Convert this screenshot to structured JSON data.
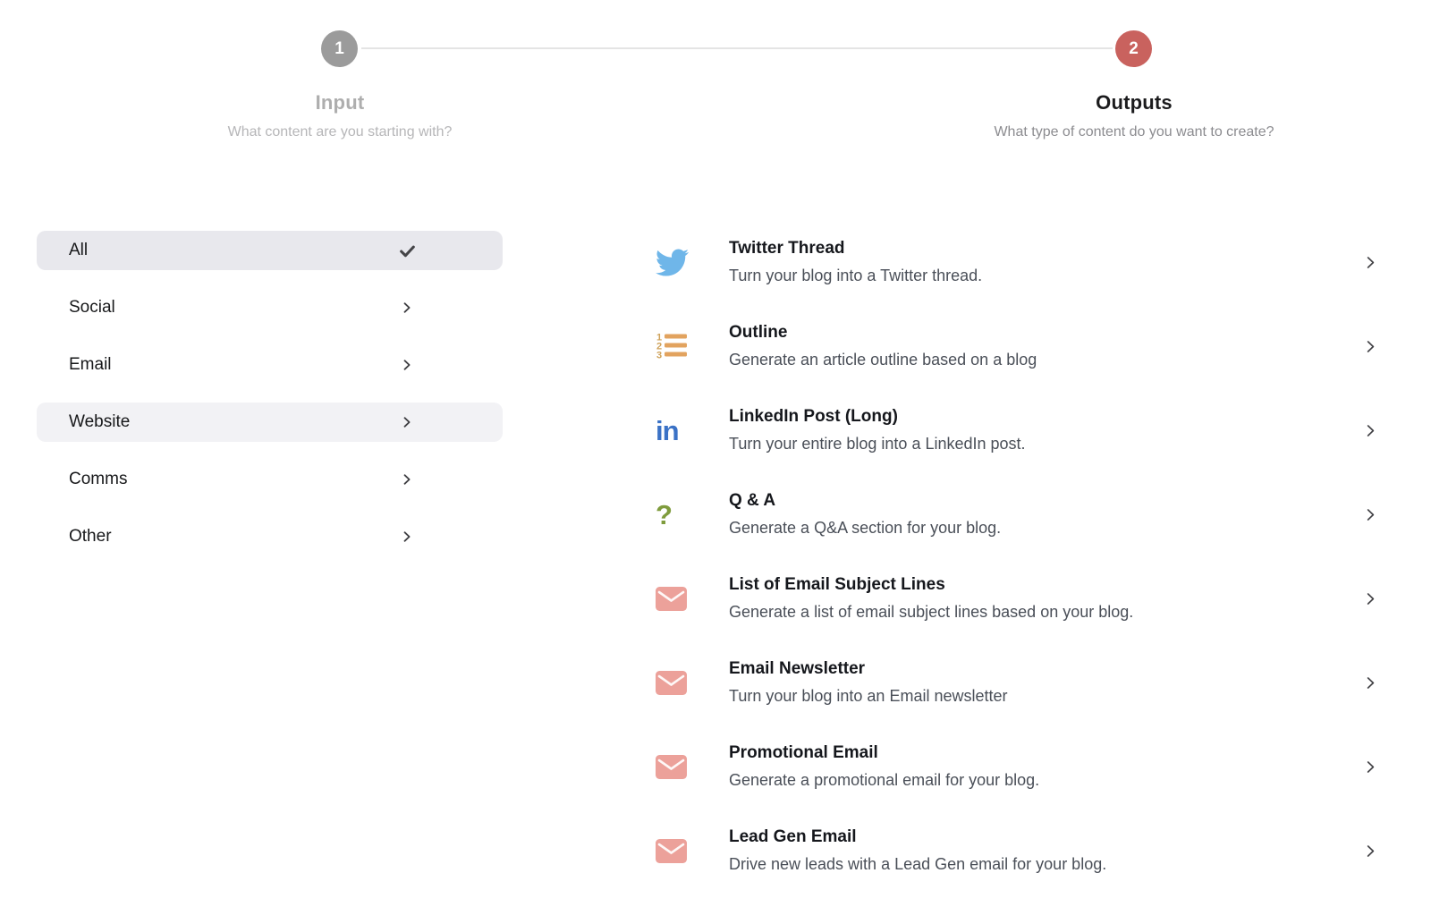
{
  "stepper": {
    "connector_color": "#e4e4e4",
    "steps": [
      {
        "number": "1",
        "label": "Input",
        "subtitle": "What content are you starting with?",
        "circle_color": "#9b9b9b",
        "state": "inactive"
      },
      {
        "number": "2",
        "label": "Outputs",
        "subtitle": "What type of content do you want to create?",
        "circle_color": "#c9625e",
        "state": "active"
      }
    ]
  },
  "categories": {
    "selected_bg": "#e8e8ed",
    "hover_bg": "#f2f2f5",
    "items": [
      {
        "label": "All",
        "trailing_icon": "check",
        "highlight": "selected"
      },
      {
        "label": "Social",
        "trailing_icon": "chevron-right",
        "highlight": null
      },
      {
        "label": "Email",
        "trailing_icon": "chevron-right",
        "highlight": null
      },
      {
        "label": "Website",
        "trailing_icon": "chevron-right",
        "highlight": "hover"
      },
      {
        "label": "Comms",
        "trailing_icon": "chevron-right",
        "highlight": null
      },
      {
        "label": "Other",
        "trailing_icon": "chevron-right",
        "highlight": null
      }
    ]
  },
  "outputs": {
    "items": [
      {
        "title": "Twitter Thread",
        "description": "Turn your blog into a Twitter thread.",
        "icon": "twitter-bird",
        "icon_color": "#6fb6e9"
      },
      {
        "title": "Outline",
        "description": "Generate an article outline based on a blog",
        "icon": "numbered-list",
        "icon_color": "#e2a35f"
      },
      {
        "title": "LinkedIn Post (Long)",
        "description": "Turn your entire blog into a LinkedIn post.",
        "icon": "linkedin",
        "icon_color": "#3b72c6"
      },
      {
        "title": "Q & A",
        "description": "Generate a Q&A section for your blog.",
        "icon": "question-mark",
        "icon_color": "#7f9c3d"
      },
      {
        "title": "List of Email Subject Lines",
        "description": "Generate a list of email subject lines based on your blog.",
        "icon": "envelope",
        "icon_color": "#eca19a"
      },
      {
        "title": "Email Newsletter",
        "description": "Turn your blog into an Email newsletter",
        "icon": "envelope",
        "icon_color": "#eca19a"
      },
      {
        "title": "Promotional Email",
        "description": "Generate a promotional email for your blog.",
        "icon": "envelope",
        "icon_color": "#eca19a"
      },
      {
        "title": "Lead Gen Email",
        "description": "Drive new leads with a Lead Gen email for your blog.",
        "icon": "envelope",
        "icon_color": "#eca19a"
      }
    ]
  }
}
